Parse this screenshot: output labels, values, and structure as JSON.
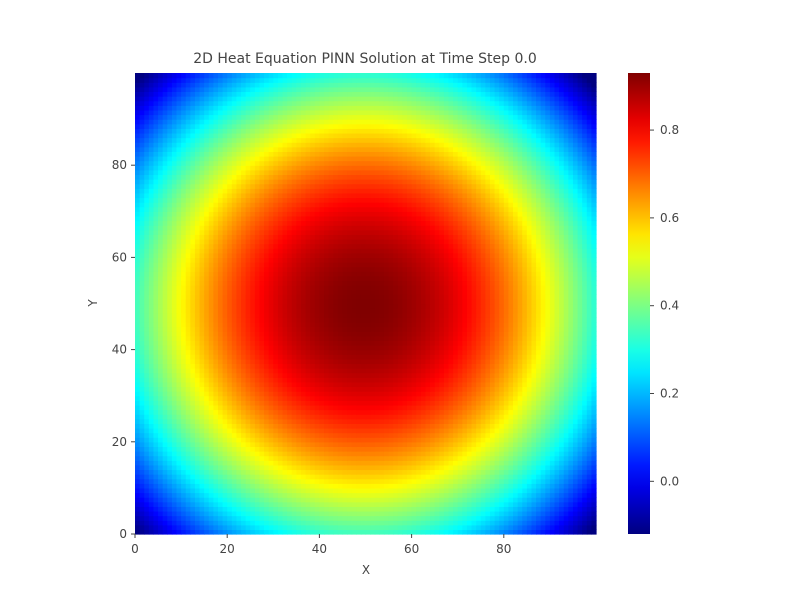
{
  "chart_data": {
    "type": "heatmap",
    "title": "2D Heat Equation PINN Solution at Time Step 0.0",
    "xlabel": "X",
    "ylabel": "Y",
    "xlim": [
      0,
      99
    ],
    "ylim": [
      0,
      99
    ],
    "grid": false,
    "colormap": "jet",
    "x_ticks": [
      0,
      20,
      40,
      60,
      80
    ],
    "x_tick_labels": [
      "0",
      "20",
      "40",
      "60",
      "80"
    ],
    "y_ticks": [
      0,
      20,
      40,
      60,
      80
    ],
    "y_tick_labels": [
      "0",
      "20",
      "40",
      "60",
      "80"
    ],
    "field": {
      "description_of_pattern": "radially symmetric peak",
      "center": [
        49,
        49
      ],
      "peak_value": 0.93,
      "corner_value": -0.12,
      "grid_size": [
        100,
        100
      ]
    },
    "colorbar": {
      "min": -0.12,
      "max": 0.93,
      "ticks": [
        0.0,
        0.2,
        0.4,
        0.6,
        0.8
      ],
      "tick_labels": [
        "0.0",
        "0.2",
        "0.4",
        "0.6",
        "0.8"
      ]
    }
  }
}
